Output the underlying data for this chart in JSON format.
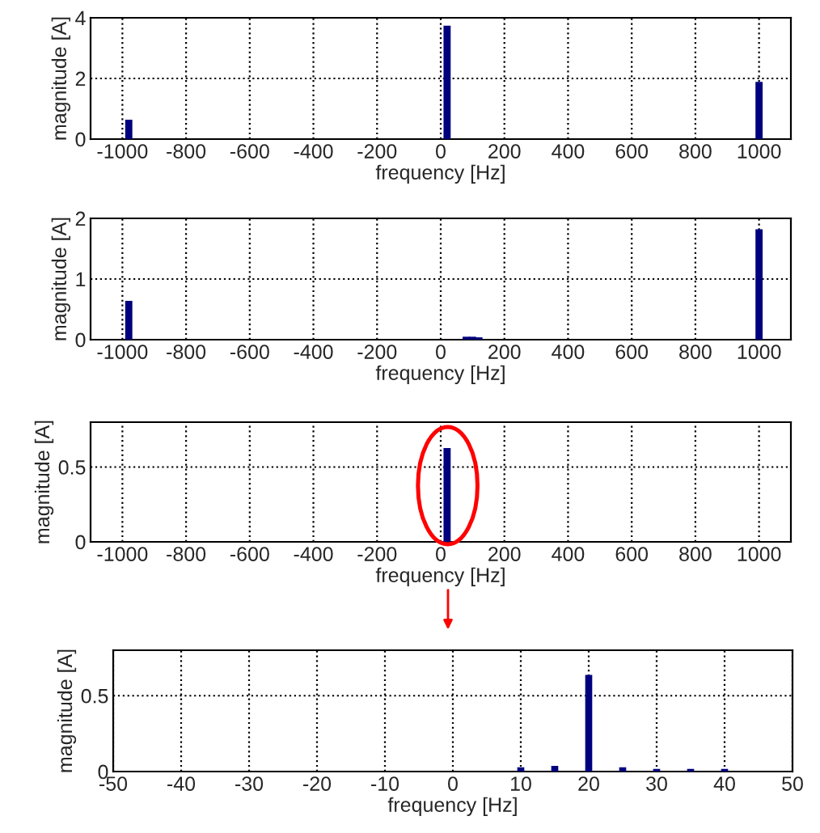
{
  "chart_data": [
    {
      "type": "bar",
      "xlabel": "frequency [Hz]",
      "ylabel": "magnitude [A]",
      "x": [
        -980,
        20,
        1000
      ],
      "values": [
        0.6,
        3.7,
        1.85
      ],
      "color": "#00007f",
      "xlim": [
        -1100,
        1100
      ],
      "xticks": [
        -1000,
        -800,
        -600,
        -400,
        -200,
        0,
        200,
        400,
        600,
        800,
        1000
      ],
      "ylim": [
        0,
        4
      ],
      "yticks": [
        0,
        2,
        4
      ],
      "grid": true
    },
    {
      "type": "bar",
      "xlabel": "frequency [Hz]",
      "ylabel": "magnitude [A]",
      "x": [
        -980,
        80,
        100,
        120,
        1000
      ],
      "values": [
        0.62,
        0.03,
        0.03,
        0.02,
        1.8
      ],
      "color": "#00007f",
      "xlim": [
        -1100,
        1100
      ],
      "xticks": [
        -1000,
        -800,
        -600,
        -400,
        -200,
        0,
        200,
        400,
        600,
        800,
        1000
      ],
      "ylim": [
        0,
        2
      ],
      "yticks": [
        0,
        1,
        2
      ],
      "grid": true
    },
    {
      "type": "bar",
      "xlabel": "frequency [Hz]",
      "ylabel": "magnitude [A]",
      "x": [
        20
      ],
      "values": [
        0.62
      ],
      "color": "#00007f",
      "xlim": [
        -1100,
        1100
      ],
      "xticks": [
        -1000,
        -800,
        -600,
        -400,
        -200,
        0,
        200,
        400,
        600,
        800,
        1000
      ],
      "ylim": [
        0,
        0.8
      ],
      "yticks": [
        0,
        0.5
      ],
      "grid": true
    },
    {
      "type": "bar",
      "xlabel": "frequency [Hz]",
      "ylabel": "magnitude [A]",
      "x": [
        10,
        15,
        20,
        25,
        30,
        35,
        40
      ],
      "values": [
        0.02,
        0.03,
        0.63,
        0.02,
        0.01,
        0.01,
        0.01
      ],
      "color": "#00007f",
      "xlim": [
        -50,
        50
      ],
      "xticks": [
        -50,
        -40,
        -30,
        -20,
        -10,
        0,
        10,
        20,
        30,
        40,
        50
      ],
      "ylim": [
        0,
        0.8
      ],
      "yticks": [
        0,
        0.5
      ],
      "grid": true
    }
  ]
}
